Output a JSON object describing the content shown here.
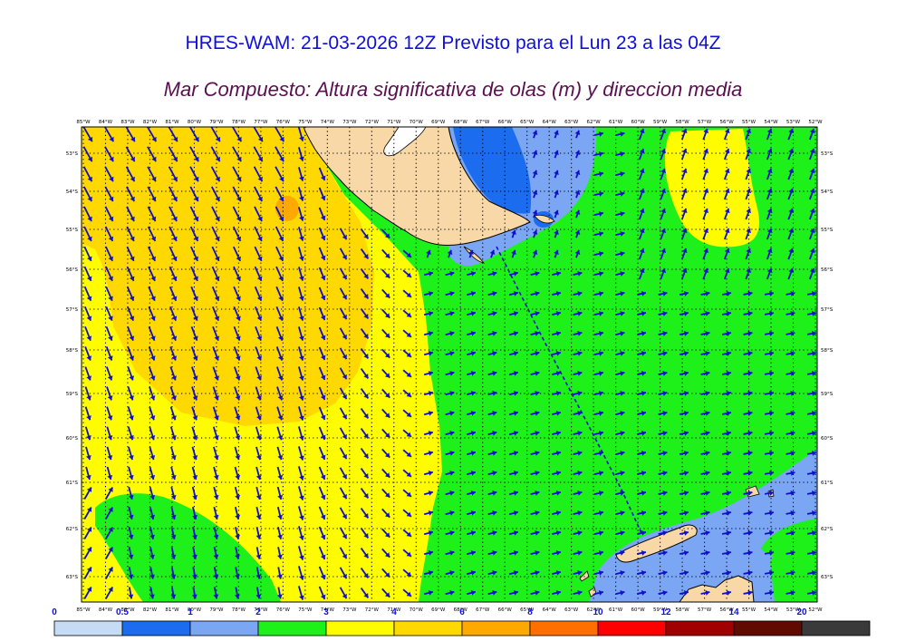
{
  "title": "HRES-WAM: 21-03-2026 12Z Previsto para el Lun 23 a las 04Z",
  "subtitle": "Mar Compuesto: Altura significativa de olas (m) y direccion media",
  "lon_labels": [
    "85°W",
    "84°W",
    "83°W",
    "82°W",
    "81°W",
    "80°W",
    "79°W",
    "78°W",
    "77°W",
    "76°W",
    "75°W",
    "74°W",
    "73°W",
    "72°W",
    "71°W",
    "70°W",
    "69°W",
    "68°W",
    "67°W",
    "66°W",
    "65°W",
    "64°W",
    "63°W",
    "62°W",
    "61°W",
    "60°W",
    "59°W",
    "58°W",
    "57°W",
    "56°W",
    "55°W",
    "54°W",
    "53°W",
    "52°W"
  ],
  "lat_labels": [
    "53°S",
    "54°S",
    "55°S",
    "56°S",
    "57°S",
    "58°S",
    "59°S",
    "60°S",
    "61°S",
    "62°S",
    "63°S"
  ],
  "colorbar": {
    "ticks": [
      "0",
      "0.5",
      "1",
      "2",
      "3",
      "4",
      "6",
      "8",
      "10",
      "12",
      "14",
      "20"
    ],
    "colors": [
      "#c6dcf6",
      "#1c6cf0",
      "#7aa6f4",
      "#1ef01a",
      "#fffc00",
      "#ffd800",
      "#ffa800",
      "#ff7000",
      "#ff0000",
      "#a00000",
      "#600a00",
      "#3a3a3a"
    ]
  },
  "colors": {
    "title": "#1010d8",
    "subtitle": "#5a1050",
    "arrow": "#1010c8",
    "land": "#f9d8a8",
    "track": "#1010c8"
  }
}
